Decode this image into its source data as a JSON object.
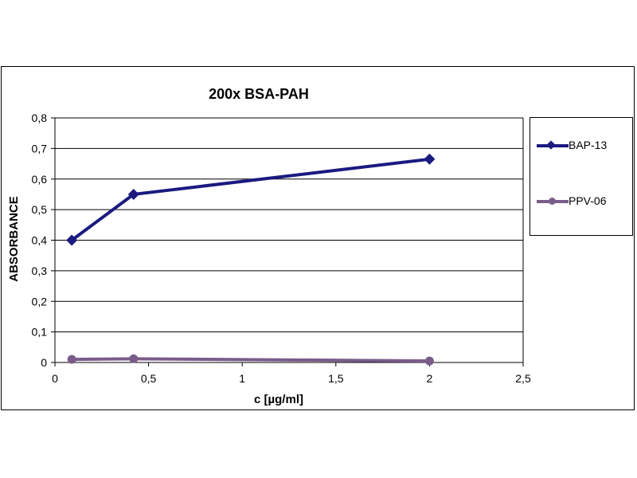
{
  "chart_data": {
    "type": "line",
    "title": "200x BSA-PAH",
    "xlabel": "c [µg/ml]",
    "ylabel": "ABSORBANCE",
    "xlim": [
      0,
      2.5
    ],
    "ylim": [
      0,
      0.8
    ],
    "x_ticks": [
      "0",
      "0,5",
      "1",
      "1,5",
      "2",
      "2,5"
    ],
    "y_ticks": [
      "0",
      "0,1",
      "0,2",
      "0,3",
      "0,4",
      "0,5",
      "0,6",
      "0,7",
      "0,8"
    ],
    "grid": "horizontal",
    "legend_position": "right",
    "series": [
      {
        "name": "BAP-13",
        "color": "#1a1a80",
        "marker": "diamond",
        "points": [
          {
            "x": 0.09,
            "y": 0.4
          },
          {
            "x": 0.42,
            "y": 0.55
          },
          {
            "x": 2.0,
            "y": 0.665
          }
        ]
      },
      {
        "name": "PPV-06",
        "color": "#7a5c8a",
        "marker": "circle",
        "points": [
          {
            "x": 0.09,
            "y": 0.01
          },
          {
            "x": 0.42,
            "y": 0.012
          },
          {
            "x": 2.0,
            "y": 0.005
          }
        ]
      }
    ]
  }
}
